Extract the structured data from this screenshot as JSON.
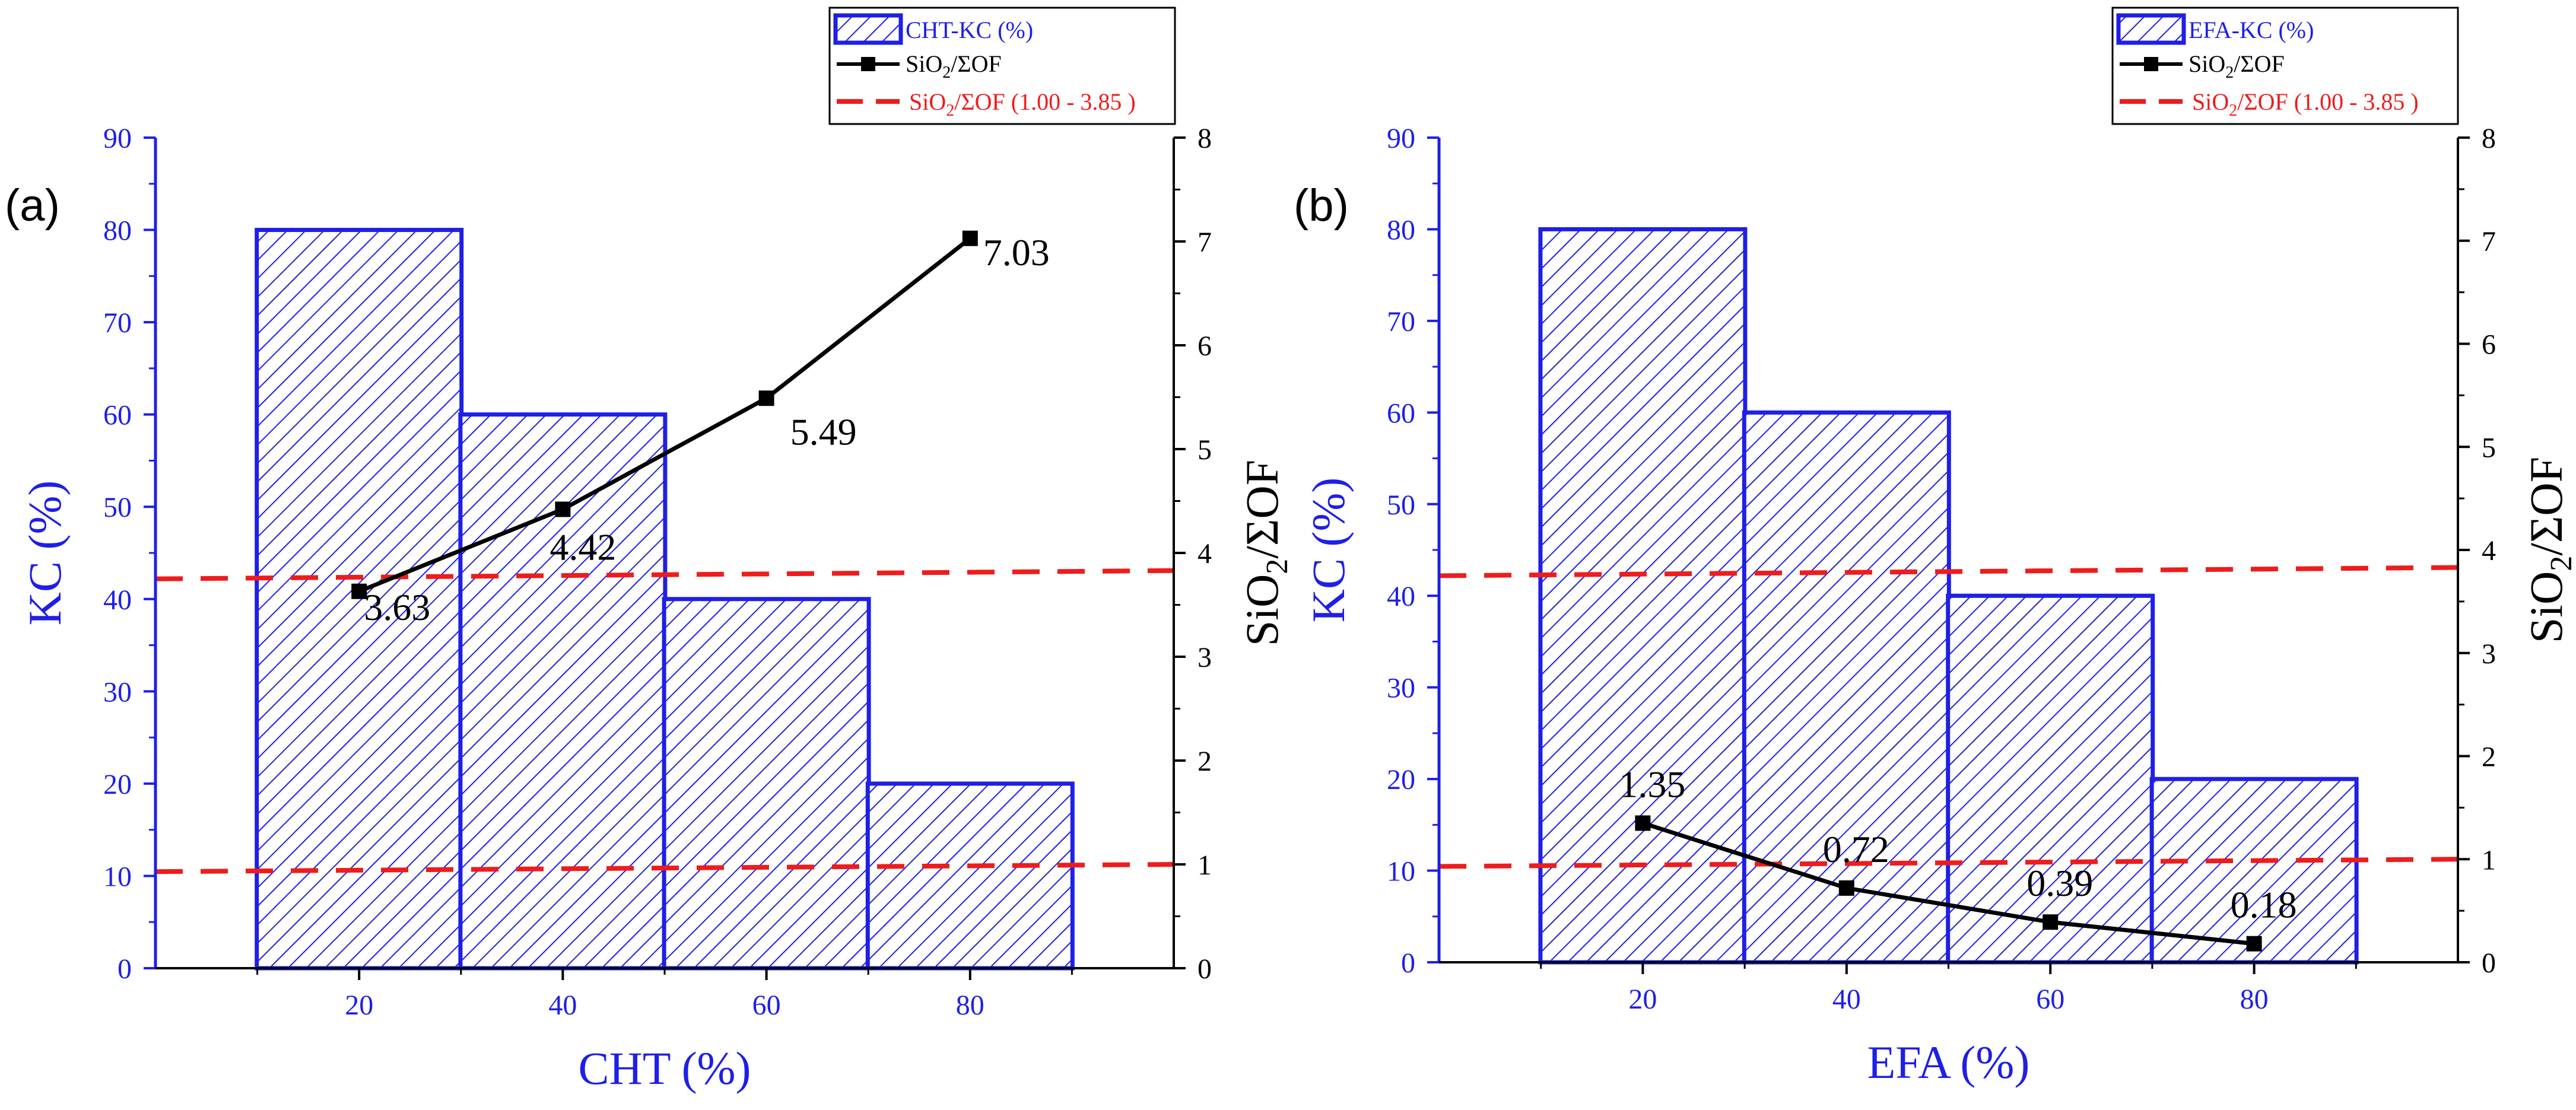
{
  "colors": {
    "bar": "#1f1fe6",
    "left_axis": "#1f1fe6",
    "line": "#000000",
    "threshold": "#ee1c1c",
    "right_axis": "#000000"
  },
  "chart_data": [
    {
      "type": "bar",
      "panel_label": "(a)",
      "categories": [
        "20",
        "40",
        "60",
        "80"
      ],
      "bar_series": {
        "name": "CHT-KC (%)",
        "values": [
          80,
          60,
          40,
          20
        ]
      },
      "line_series": {
        "name": "SiO2/ΣOF",
        "values": [
          3.63,
          4.42,
          5.49,
          7.03
        ],
        "labels": [
          "3.63",
          "4.42",
          "5.49",
          "7.03"
        ]
      },
      "threshold_series": {
        "name": "SiO2/ΣOF (1.00 - 3.85 )",
        "lower": [
          0.93,
          1.0
        ],
        "upper": [
          3.75,
          3.83
        ]
      },
      "xlabel": "CHT (%)",
      "ylabel_left": "KC (%)",
      "ylabel_right": "SiO2/ΣOF",
      "xlim": [
        0,
        100
      ],
      "ylim_left": [
        0,
        90
      ],
      "ylim_right": [
        0,
        8
      ],
      "yticks_left": [
        "0",
        "10",
        "20",
        "30",
        "40",
        "50",
        "60",
        "70",
        "80",
        "90"
      ],
      "yticks_right": [
        "0",
        "1",
        "2",
        "3",
        "4",
        "5",
        "6",
        "7",
        "8"
      ],
      "legend": {
        "position": "top-right",
        "bar_text": "CHT-KC (%)",
        "line_base": "SiO",
        "line_sub": "2",
        "line_rest": "/ΣOF",
        "threshold_base": "SiO",
        "threshold_sub": "2",
        "threshold_rest": "/ΣOF (1.00 - 3.85 )"
      },
      "right_label_parts": {
        "base": "SiO",
        "sub": "2",
        "rest": "/ΣOF"
      }
    },
    {
      "type": "bar",
      "panel_label": "(b)",
      "categories": [
        "20",
        "40",
        "60",
        "80"
      ],
      "bar_series": {
        "name": "EFA-KC (%)",
        "values": [
          80,
          60,
          40,
          20
        ]
      },
      "line_series": {
        "name": "SiO2/ΣOF",
        "values": [
          1.35,
          0.72,
          0.39,
          0.18
        ],
        "labels": [
          "1.35",
          "0.72",
          "0.39",
          "0.18"
        ]
      },
      "threshold_series": {
        "name": "SiO2/ΣOF (1.00 - 3.85 )",
        "lower": [
          0.93,
          1.0
        ],
        "upper": [
          3.75,
          3.83
        ]
      },
      "xlabel": "EFA (%)",
      "ylabel_left": "KC (%)",
      "ylabel_right": "SiO2/ΣOF",
      "xlim": [
        0,
        100
      ],
      "ylim_left": [
        0,
        90
      ],
      "ylim_right": [
        0,
        8
      ],
      "yticks_left": [
        "0",
        "10",
        "20",
        "30",
        "40",
        "50",
        "60",
        "70",
        "80",
        "90"
      ],
      "yticks_right": [
        "0",
        "1",
        "2",
        "3",
        "4",
        "5",
        "6",
        "7",
        "8"
      ],
      "legend": {
        "position": "top-right",
        "bar_text": "EFA-KC (%)",
        "line_base": "SiO",
        "line_sub": "2",
        "line_rest": "/ΣOF",
        "threshold_base": "SiO",
        "threshold_sub": "2",
        "threshold_rest": "/ΣOF (1.00 - 3.85 )"
      },
      "right_label_parts": {
        "base": "SiO",
        "sub": "2",
        "rest": "/ΣOF"
      }
    }
  ]
}
